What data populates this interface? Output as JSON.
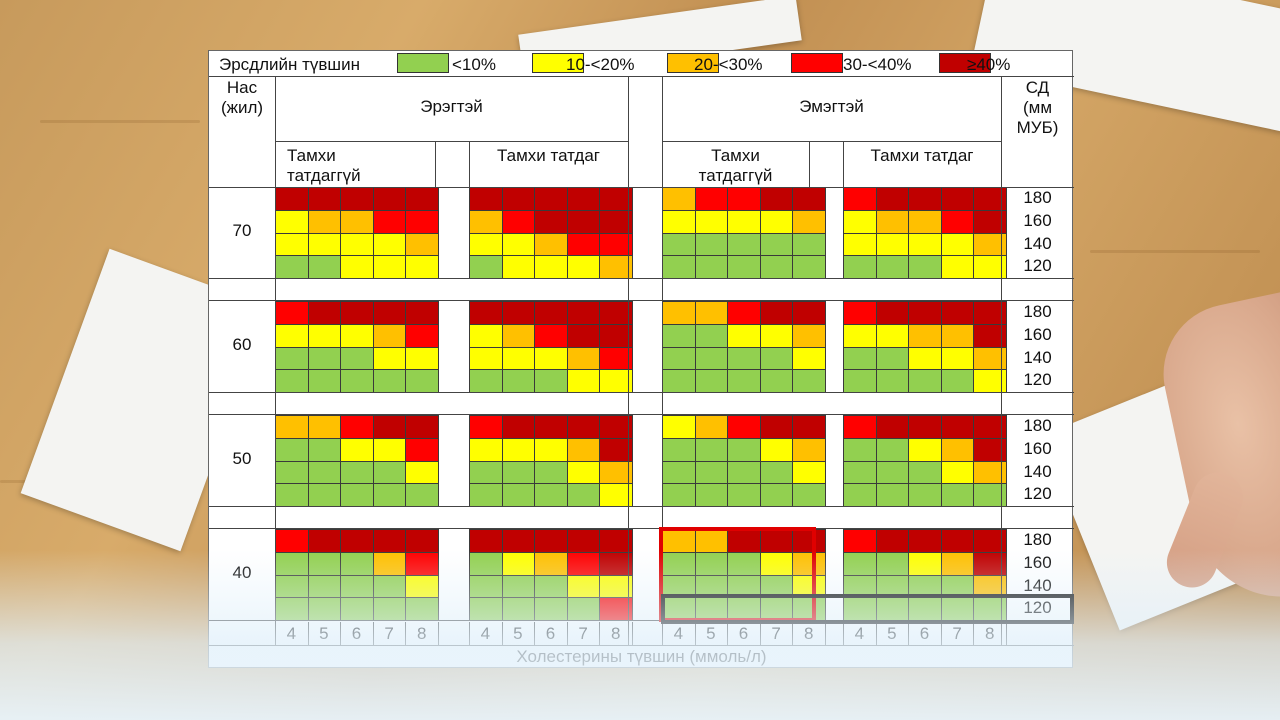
{
  "legend": {
    "title": "Эрсдлийн түвшин",
    "levels": [
      {
        "label": "<10%",
        "color": "#92d050"
      },
      {
        "label": "10-<20%",
        "color": "#ffff00"
      },
      {
        "label": "20-<30%",
        "color": "#ffc000"
      },
      {
        "label": "30-<40%",
        "color": "#ff0000"
      },
      {
        "label": "≥40%",
        "color": "#c00000"
      }
    ]
  },
  "headers": {
    "age": "Нас\n(жил)",
    "male": "Эрэгтэй",
    "female": "Эмэгтэй",
    "bp": "СД\n(мм\nМУБ)",
    "non_smoker": "Тамхи\nтатдаггүй",
    "smoker": "Тамхи татдаг",
    "cholesterol_axis": "Холестерины түвшин (ммоль/л)"
  },
  "cholesterol_values": [
    "4",
    "5",
    "6",
    "7",
    "8"
  ],
  "bp_values": [
    "180",
    "160",
    "140",
    "120"
  ],
  "ages": [
    "70",
    "60",
    "50",
    "40"
  ],
  "grid": [
    [
      [
        [
          4,
          4,
          4,
          4,
          4
        ],
        [
          1,
          2,
          2,
          3,
          3
        ],
        [
          1,
          1,
          1,
          1,
          2
        ],
        [
          0,
          0,
          1,
          1,
          1
        ]
      ],
      [
        [
          4,
          4,
          4,
          4,
          4
        ],
        [
          2,
          3,
          4,
          4,
          4
        ],
        [
          1,
          1,
          2,
          3,
          3
        ],
        [
          0,
          1,
          1,
          1,
          2
        ]
      ],
      [
        [
          2,
          3,
          3,
          4,
          4
        ],
        [
          1,
          1,
          1,
          1,
          2
        ],
        [
          0,
          0,
          0,
          0,
          0
        ],
        [
          0,
          0,
          0,
          0,
          0
        ]
      ],
      [
        [
          3,
          4,
          4,
          4,
          4
        ],
        [
          1,
          2,
          2,
          3,
          4
        ],
        [
          1,
          1,
          1,
          1,
          2
        ],
        [
          0,
          0,
          0,
          1,
          1
        ]
      ]
    ],
    [
      [
        [
          3,
          4,
          4,
          4,
          4
        ],
        [
          1,
          1,
          1,
          2,
          3
        ],
        [
          0,
          0,
          0,
          1,
          1
        ],
        [
          0,
          0,
          0,
          0,
          0
        ]
      ],
      [
        [
          4,
          4,
          4,
          4,
          4
        ],
        [
          1,
          2,
          3,
          4,
          4
        ],
        [
          1,
          1,
          1,
          2,
          3
        ],
        [
          0,
          0,
          0,
          1,
          1
        ]
      ],
      [
        [
          2,
          2,
          3,
          4,
          4
        ],
        [
          0,
          0,
          1,
          1,
          2
        ],
        [
          0,
          0,
          0,
          0,
          1
        ],
        [
          0,
          0,
          0,
          0,
          0
        ]
      ],
      [
        [
          3,
          4,
          4,
          4,
          4
        ],
        [
          1,
          1,
          2,
          2,
          4
        ],
        [
          0,
          0,
          1,
          1,
          2
        ],
        [
          0,
          0,
          0,
          0,
          1
        ]
      ]
    ],
    [
      [
        [
          2,
          2,
          3,
          4,
          4
        ],
        [
          0,
          0,
          1,
          1,
          3
        ],
        [
          0,
          0,
          0,
          0,
          1
        ],
        [
          0,
          0,
          0,
          0,
          0
        ]
      ],
      [
        [
          3,
          4,
          4,
          4,
          4
        ],
        [
          1,
          1,
          1,
          2,
          4
        ],
        [
          0,
          0,
          0,
          1,
          2
        ],
        [
          0,
          0,
          0,
          0,
          1
        ]
      ],
      [
        [
          1,
          2,
          3,
          4,
          4
        ],
        [
          0,
          0,
          0,
          1,
          2
        ],
        [
          0,
          0,
          0,
          0,
          1
        ],
        [
          0,
          0,
          0,
          0,
          0
        ]
      ],
      [
        [
          3,
          4,
          4,
          4,
          4
        ],
        [
          0,
          0,
          1,
          2,
          4
        ],
        [
          0,
          0,
          0,
          1,
          2
        ],
        [
          0,
          0,
          0,
          0,
          0
        ]
      ]
    ],
    [
      [
        [
          3,
          4,
          4,
          4,
          4
        ],
        [
          0,
          0,
          0,
          2,
          3
        ],
        [
          0,
          0,
          0,
          0,
          1
        ],
        [
          0,
          0,
          0,
          0,
          0
        ]
      ],
      [
        [
          4,
          4,
          4,
          4,
          4
        ],
        [
          0,
          1,
          2,
          3,
          4
        ],
        [
          0,
          0,
          0,
          1,
          1
        ],
        [
          0,
          0,
          0,
          0,
          3
        ]
      ],
      [
        [
          2,
          2,
          4,
          4,
          4
        ],
        [
          0,
          0,
          0,
          1,
          2
        ],
        [
          0,
          0,
          0,
          0,
          1
        ],
        [
          0,
          0,
          0,
          0,
          0
        ]
      ],
      [
        [
          3,
          4,
          4,
          4,
          4
        ],
        [
          0,
          0,
          1,
          2,
          4
        ],
        [
          0,
          0,
          0,
          0,
          2
        ],
        [
          0,
          0,
          0,
          0,
          0
        ]
      ]
    ]
  ]
}
